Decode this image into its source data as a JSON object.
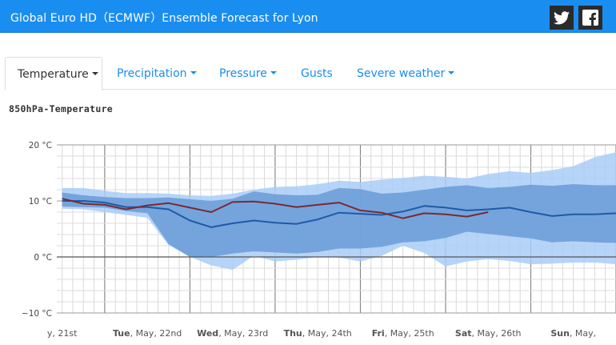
{
  "header": {
    "title": "Global Euro HD（ECMWF）Ensemble Forecast for Lyon"
  },
  "social": [
    {
      "name": "twitter-icon"
    },
    {
      "name": "facebook-icon"
    }
  ],
  "tabs": [
    {
      "label": "Temperature",
      "dropdown": true,
      "active": true
    },
    {
      "label": "Precipitation",
      "dropdown": true,
      "active": false
    },
    {
      "label": "Pressure",
      "dropdown": true,
      "active": false
    },
    {
      "label": "Gusts",
      "dropdown": false,
      "active": false
    },
    {
      "label": "Severe weather",
      "dropdown": true,
      "active": false
    }
  ],
  "chart_data": {
    "type": "line",
    "title": "850hPa-Temperature",
    "y_ticks": [
      "20 °C",
      "10 °C",
      "0 °C",
      "−10 °C"
    ],
    "ylim": [
      -10,
      20
    ],
    "grid": true,
    "x_day_labels": [
      {
        "day": "",
        "date": "y, 21st"
      },
      {
        "day": "Tue",
        "date": ", May, 22nd"
      },
      {
        "day": "Wed",
        "date": ", May, 23rd"
      },
      {
        "day": "Thu",
        "date": ", May, 24th"
      },
      {
        "day": "Fri",
        "date": ", May, 25th"
      },
      {
        "day": "Sat",
        "date": ", May, 26th"
      },
      {
        "day": "Sun",
        "date": ", May, "
      }
    ],
    "x_hours": [
      -12,
      -6,
      0,
      6,
      12,
      18,
      24,
      30,
      36,
      42,
      48,
      54,
      60,
      66,
      72,
      78,
      84,
      90,
      96,
      102,
      108,
      114,
      120,
      126,
      132,
      138,
      144
    ],
    "series": [
      {
        "color": "#1e5aa8",
        "values": [
          10.0,
          10.0,
          9.7,
          8.9,
          8.9,
          8.5,
          6.5,
          5.3,
          6.0,
          6.5,
          6.1,
          5.9,
          6.7,
          7.9,
          7.7,
          7.5,
          8.1,
          9.1,
          8.8,
          8.3,
          8.5,
          8.8,
          8.0,
          7.3,
          7.6,
          7.6,
          7.8
        ]
      },
      {
        "color": "#7a2a30",
        "values": [
          10.4,
          9.5,
          9.3,
          8.5,
          9.2,
          9.6,
          8.8,
          8.0,
          9.8,
          9.9,
          9.5,
          8.9,
          9.3,
          9.7,
          8.3,
          7.9,
          6.9,
          7.8,
          7.6,
          7.2,
          8.0
        ]
      }
    ],
    "inner_band": {
      "color": "#6e9fd8",
      "upper": [
        11.5,
        11.0,
        10.7,
        10.5,
        10.5,
        10.6,
        10.3,
        10.0,
        10.4,
        11.7,
        11.2,
        11.0,
        11.1,
        12.3,
        12.1,
        11.3,
        11.5,
        12.0,
        12.5,
        12.8,
        12.3,
        12.5,
        12.9,
        12.7,
        13.0,
        12.8,
        12.8
      ],
      "lower": [
        9.0,
        8.9,
        8.8,
        8.2,
        7.8,
        2.3,
        0.0,
        0.0,
        0.6,
        1.0,
        0.8,
        0.6,
        0.9,
        1.5,
        1.5,
        1.8,
        2.6,
        2.8,
        3.4,
        4.5,
        4.1,
        3.7,
        3.3,
        2.6,
        2.8,
        2.6,
        2.5
      ]
    },
    "outer_band": {
      "color": "#a9cdf7",
      "upper": [
        12.3,
        12.3,
        11.8,
        11.4,
        11.4,
        11.3,
        11.0,
        10.9,
        11.3,
        12.0,
        12.5,
        12.6,
        13.0,
        13.6,
        13.4,
        13.8,
        14.1,
        14.5,
        14.3,
        14.0,
        14.8,
        15.3,
        15.0,
        15.5,
        16.2,
        17.8,
        18.7
      ],
      "lower": [
        8.6,
        8.5,
        8.0,
        7.5,
        7.0,
        2.1,
        0.0,
        -1.5,
        -2.3,
        0.2,
        -0.8,
        -0.5,
        0.0,
        -0.1,
        -0.8,
        0.2,
        2.0,
        0.7,
        -1.7,
        -0.8,
        -0.4,
        -0.7,
        -1.3,
        -1.2,
        -1.0,
        -1.0,
        -1.3
      ]
    }
  }
}
